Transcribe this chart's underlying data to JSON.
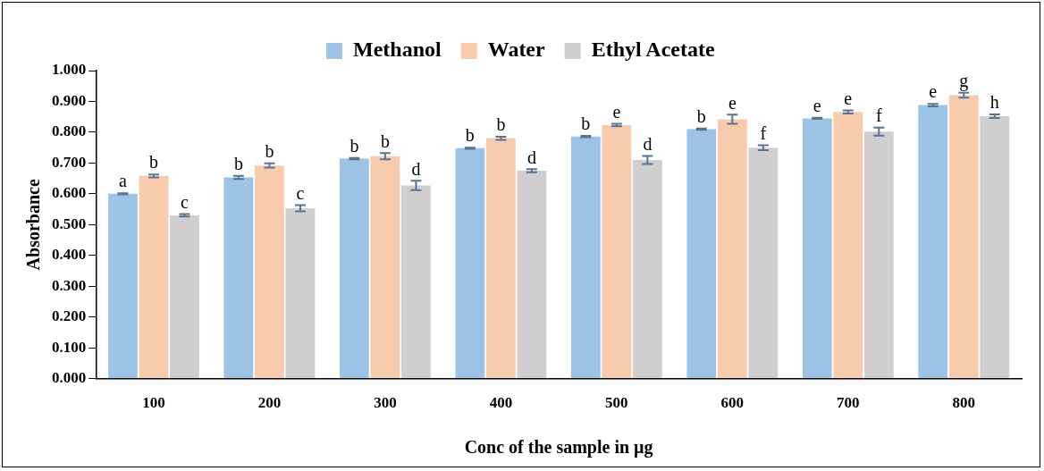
{
  "chart_data": {
    "type": "bar",
    "xlabel": "Conc of the sample in µg",
    "ylabel": "Absorbance",
    "legend": "top",
    "categories": [
      "100",
      "200",
      "300",
      "400",
      "500",
      "600",
      "700",
      "800"
    ],
    "ylim": [
      0,
      1
    ],
    "yticks": [
      {
        "value": 0,
        "label": "0.000"
      },
      {
        "value": 0.1,
        "label": "0.100"
      },
      {
        "value": 0.2,
        "label": "0.200"
      },
      {
        "value": 0.3,
        "label": "0.300"
      },
      {
        "value": 0.4,
        "label": "0.400"
      },
      {
        "value": 0.5,
        "label": "0.500"
      },
      {
        "value": 0.6,
        "label": "0.600"
      },
      {
        "value": 0.7,
        "label": "0.700"
      },
      {
        "value": 0.8,
        "label": "0.800"
      },
      {
        "value": 0.9,
        "label": "0.900"
      },
      {
        "value": 1,
        "label": "1.000"
      }
    ],
    "series": [
      {
        "name": "Methanol",
        "color": "#9dc3e6",
        "values": [
          0.6,
          0.653,
          0.714,
          0.748,
          0.786,
          0.81,
          0.845,
          0.888
        ],
        "errors": [
          0.002,
          0.005,
          0.002,
          0.002,
          0.002,
          0.002,
          0.002,
          0.004
        ],
        "value_labels": [
          "a",
          "b",
          "b",
          "b",
          "b",
          "b",
          "e",
          "e"
        ]
      },
      {
        "name": "Water",
        "color": "#f8cbad",
        "values": [
          0.658,
          0.692,
          0.722,
          0.78,
          0.823,
          0.842,
          0.866,
          0.92
        ],
        "errors": [
          0.005,
          0.007,
          0.01,
          0.005,
          0.004,
          0.015,
          0.005,
          0.008
        ],
        "value_labels": [
          "b",
          "b",
          "b",
          "b",
          "e",
          "e",
          "e",
          "g"
        ]
      },
      {
        "name": "Ethyl Acetate",
        "color": "#d0cece",
        "values": [
          0.53,
          0.553,
          0.627,
          0.675,
          0.71,
          0.75,
          0.802,
          0.852
        ],
        "errors": [
          0.004,
          0.01,
          0.015,
          0.005,
          0.013,
          0.008,
          0.013,
          0.006
        ],
        "value_labels": [
          "c",
          "c",
          "d",
          "d",
          "d",
          "f",
          "f",
          "h"
        ]
      }
    ]
  }
}
